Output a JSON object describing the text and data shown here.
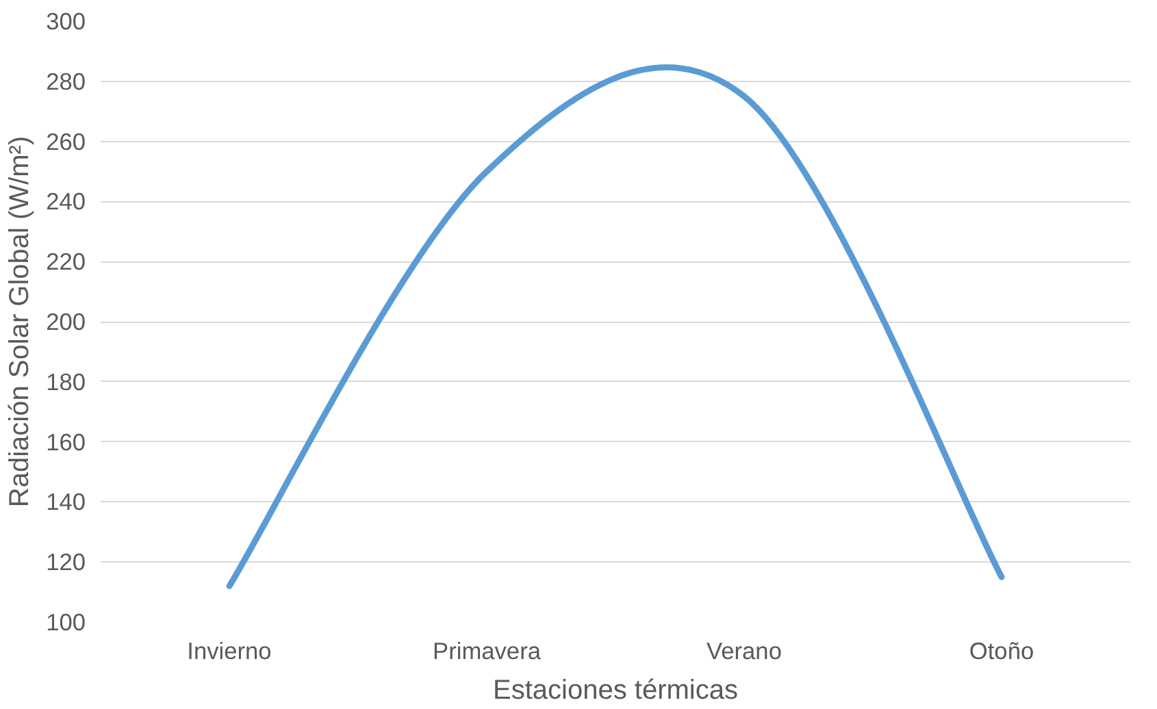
{
  "chart_data": {
    "type": "line",
    "xlabel": "Estaciones térmicas",
    "ylabel": "Radiación Solar Global (W/m²)",
    "categories": [
      "Invierno",
      "Primavera",
      "Verano",
      "Otoño"
    ],
    "series": [
      {
        "color": "#5b9bd5",
        "values": [
          112,
          250,
          275,
          115
        ]
      }
    ],
    "ylim": [
      100,
      300
    ],
    "yticks": [
      100,
      120,
      140,
      160,
      180,
      200,
      220,
      240,
      260,
      280,
      300
    ],
    "grid": "y"
  }
}
